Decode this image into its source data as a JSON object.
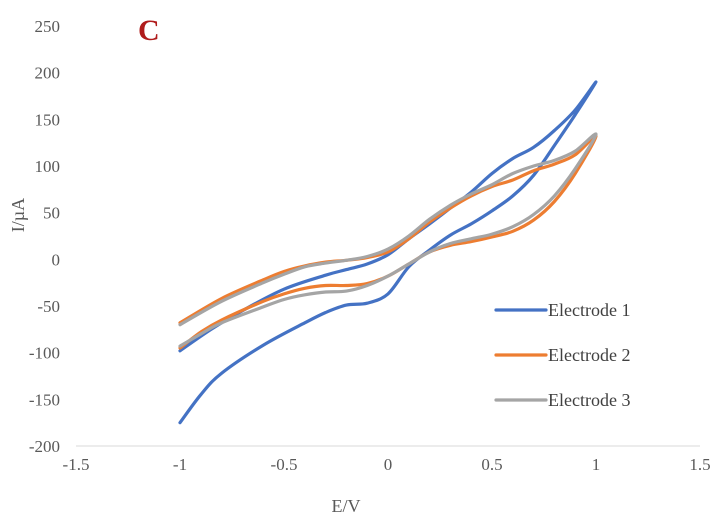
{
  "chart_data": {
    "type": "line",
    "panel_label": "C",
    "panel_label_color": "#b01c1c",
    "xlabel": "E/V",
    "ylabel": "I/µA",
    "xlim": [
      -1.5,
      1.5
    ],
    "ylim": [
      -200,
      250
    ],
    "x_ticks": [
      -1.5,
      -1,
      -0.5,
      0,
      0.5,
      1,
      1.5
    ],
    "x_tick_labels": [
      "-1.5",
      "-1",
      "-0.5",
      "0",
      "0.5",
      "1",
      "1.5"
    ],
    "y_ticks": [
      -200,
      -150,
      -100,
      -50,
      0,
      50,
      100,
      150,
      200,
      250
    ],
    "y_tick_labels": [
      "-200",
      "-150",
      "-100",
      "-50",
      "0",
      "50",
      "100",
      "150",
      "200",
      "250"
    ],
    "grid": false,
    "legend_position": "bottom-right",
    "series": [
      {
        "name": "Electrode 1",
        "color": "#4472c4",
        "points": [
          [
            -1.0,
            -175
          ],
          [
            -0.9,
            -145
          ],
          [
            -0.8,
            -122
          ],
          [
            -0.6,
            -92
          ],
          [
            -0.4,
            -68
          ],
          [
            -0.3,
            -57
          ],
          [
            -0.2,
            -49
          ],
          [
            -0.1,
            -47
          ],
          [
            0.0,
            -37
          ],
          [
            0.1,
            -8
          ],
          [
            0.2,
            10
          ],
          [
            0.3,
            26
          ],
          [
            0.4,
            38
          ],
          [
            0.5,
            52
          ],
          [
            0.6,
            68
          ],
          [
            0.7,
            90
          ],
          [
            0.8,
            122
          ],
          [
            0.9,
            155
          ],
          [
            1.0,
            190
          ],
          [
            0.9,
            160
          ],
          [
            0.8,
            138
          ],
          [
            0.7,
            120
          ],
          [
            0.6,
            108
          ],
          [
            0.5,
            92
          ],
          [
            0.4,
            72
          ],
          [
            0.3,
            55
          ],
          [
            0.2,
            38
          ],
          [
            0.1,
            22
          ],
          [
            0.0,
            5
          ],
          [
            -0.1,
            -5
          ],
          [
            -0.2,
            -11
          ],
          [
            -0.3,
            -17
          ],
          [
            -0.5,
            -32
          ],
          [
            -0.7,
            -55
          ],
          [
            -0.85,
            -75
          ],
          [
            -1.0,
            -98
          ]
        ]
      },
      {
        "name": "Electrode 2",
        "color": "#ed7d31",
        "points": [
          [
            -1.0,
            -95
          ],
          [
            -0.9,
            -78
          ],
          [
            -0.8,
            -65
          ],
          [
            -0.6,
            -45
          ],
          [
            -0.5,
            -37
          ],
          [
            -0.4,
            -31
          ],
          [
            -0.3,
            -28
          ],
          [
            -0.2,
            -28
          ],
          [
            -0.1,
            -26
          ],
          [
            0.0,
            -18
          ],
          [
            0.1,
            -5
          ],
          [
            0.2,
            8
          ],
          [
            0.3,
            15
          ],
          [
            0.4,
            19
          ],
          [
            0.5,
            24
          ],
          [
            0.6,
            30
          ],
          [
            0.7,
            42
          ],
          [
            0.8,
            62
          ],
          [
            0.9,
            92
          ],
          [
            1.0,
            132
          ],
          [
            0.9,
            112
          ],
          [
            0.8,
            102
          ],
          [
            0.7,
            95
          ],
          [
            0.6,
            85
          ],
          [
            0.5,
            78
          ],
          [
            0.4,
            68
          ],
          [
            0.3,
            55
          ],
          [
            0.2,
            40
          ],
          [
            0.1,
            22
          ],
          [
            0.0,
            8
          ],
          [
            -0.1,
            2
          ],
          [
            -0.2,
            -1
          ],
          [
            -0.3,
            -3
          ],
          [
            -0.4,
            -7
          ],
          [
            -0.5,
            -13
          ],
          [
            -0.6,
            -22
          ],
          [
            -0.8,
            -42
          ],
          [
            -1.0,
            -68
          ]
        ]
      },
      {
        "name": "Electrode 3",
        "color": "#a5a5a5",
        "points": [
          [
            -1.0,
            -93
          ],
          [
            -0.9,
            -80
          ],
          [
            -0.8,
            -68
          ],
          [
            -0.6,
            -51
          ],
          [
            -0.5,
            -43
          ],
          [
            -0.4,
            -38
          ],
          [
            -0.3,
            -35
          ],
          [
            -0.2,
            -34
          ],
          [
            -0.1,
            -28
          ],
          [
            0.0,
            -18
          ],
          [
            0.1,
            -5
          ],
          [
            0.2,
            8
          ],
          [
            0.3,
            17
          ],
          [
            0.4,
            22
          ],
          [
            0.5,
            27
          ],
          [
            0.6,
            35
          ],
          [
            0.7,
            48
          ],
          [
            0.8,
            68
          ],
          [
            0.9,
            97
          ],
          [
            1.0,
            134
          ],
          [
            0.9,
            116
          ],
          [
            0.8,
            106
          ],
          [
            0.7,
            100
          ],
          [
            0.6,
            92
          ],
          [
            0.5,
            80
          ],
          [
            0.4,
            70
          ],
          [
            0.3,
            58
          ],
          [
            0.2,
            43
          ],
          [
            0.1,
            25
          ],
          [
            0.0,
            11
          ],
          [
            -0.1,
            3
          ],
          [
            -0.2,
            -1
          ],
          [
            -0.3,
            -4
          ],
          [
            -0.4,
            -8
          ],
          [
            -0.5,
            -16
          ],
          [
            -0.6,
            -25
          ],
          [
            -0.8,
            -45
          ],
          [
            -1.0,
            -70
          ]
        ]
      }
    ]
  }
}
